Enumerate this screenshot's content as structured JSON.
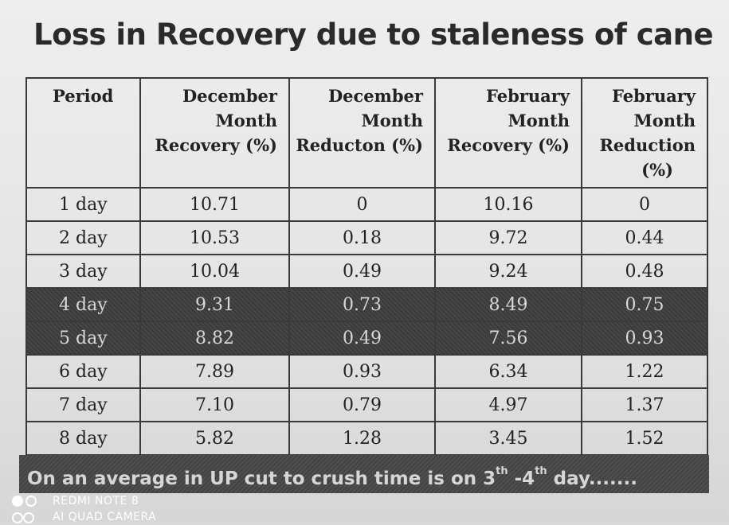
{
  "title": "Loss in Recovery due to staleness of cane",
  "table": {
    "headers": [
      [
        "Period"
      ],
      [
        "December",
        "Month",
        "Recovery (%)"
      ],
      [
        "December",
        "Month",
        "Reducton (%)"
      ],
      [
        "February",
        "Month",
        "Recovery (%)"
      ],
      [
        "February",
        "Month",
        "Reduction",
        "(%)"
      ]
    ],
    "rows": [
      [
        "1 day",
        "10.71",
        "0",
        "10.16",
        "0"
      ],
      [
        "2 day",
        "10.53",
        "0.18",
        "9.72",
        "0.44"
      ],
      [
        "3 day",
        "10.04",
        "0.49",
        "9.24",
        "0.48"
      ],
      [
        "4 day",
        "9.31",
        "0.73",
        "8.49",
        "0.75"
      ],
      [
        "5 day",
        "8.82",
        "0.49",
        "7.56",
        "0.93"
      ],
      [
        "6 day",
        "7.89",
        "0.93",
        "6.34",
        "1.22"
      ],
      [
        "7 day",
        "7.10",
        "0.79",
        "4.97",
        "1.37"
      ],
      [
        "8 day",
        "5.82",
        "1.28",
        "3.45",
        "1.52"
      ]
    ],
    "highlighted_rows": [
      "4 day",
      "5 day"
    ],
    "highlight_color": "#3d3d3d"
  },
  "footer": {
    "text_before": "On an average in UP cut to crush time is on 3",
    "sup1": "th",
    "text_middle": " -4",
    "sup2": "th",
    "text_after": " day.......",
    "background": "#474747"
  },
  "watermark": {
    "line1": "REDMI NOTE 8",
    "line2": "AI QUAD CAMERA"
  }
}
